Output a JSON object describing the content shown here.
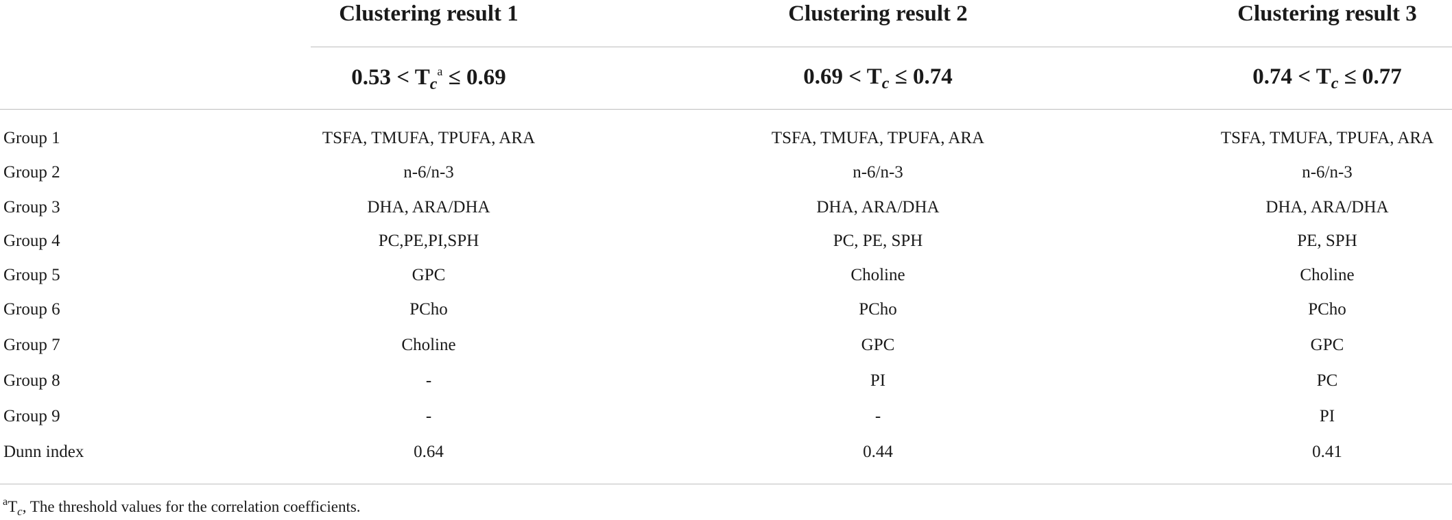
{
  "header": {
    "cluster_titles": [
      "Clustering result 1",
      "Clustering result 2",
      "Clustering result 3"
    ],
    "thresholds": [
      {
        "low": "0.53 < T",
        "sub": "c",
        "sup": "a",
        "high": " ≤ 0.69"
      },
      {
        "low": "0.69 < T",
        "sub": "c",
        "sup": "",
        "high": " ≤ 0.74"
      },
      {
        "low": "0.74 < T",
        "sub": "c",
        "sup": "",
        "high": " ≤ 0.77"
      }
    ]
  },
  "rows": [
    {
      "label": "Group 1",
      "values": [
        "TSFA, TMUFA, TPUFA, ARA",
        "TSFA, TMUFA, TPUFA, ARA",
        "TSFA, TMUFA, TPUFA, ARA"
      ]
    },
    {
      "label": "Group 2",
      "values": [
        "n-6/n-3",
        "n-6/n-3",
        "n-6/n-3"
      ]
    },
    {
      "label": "Group 3",
      "values": [
        "DHA, ARA/DHA",
        "DHA, ARA/DHA",
        "DHA, ARA/DHA"
      ]
    },
    {
      "label": "Group 4",
      "values": [
        "PC,PE,PI,SPH",
        "PC, PE, SPH",
        "PE, SPH"
      ]
    },
    {
      "label": "Group 5",
      "values": [
        "GPC",
        "Choline",
        "Choline"
      ]
    },
    {
      "label": "Group 6",
      "values": [
        "PCho",
        "PCho",
        "PCho"
      ]
    },
    {
      "label": "Group 7",
      "values": [
        "Choline",
        "GPC",
        "GPC"
      ]
    },
    {
      "label": "Group 8",
      "values": [
        "-",
        "PI",
        "PC"
      ]
    },
    {
      "label": "Group 9",
      "values": [
        "-",
        "-",
        "PI"
      ]
    },
    {
      "label": "Dunn index",
      "values": [
        "0.64",
        "0.44",
        "0.41"
      ]
    }
  ],
  "footnote": {
    "marker": "a",
    "symbol": "T",
    "sub": "c",
    "text": ", The threshold values for the correlation coefficients."
  }
}
